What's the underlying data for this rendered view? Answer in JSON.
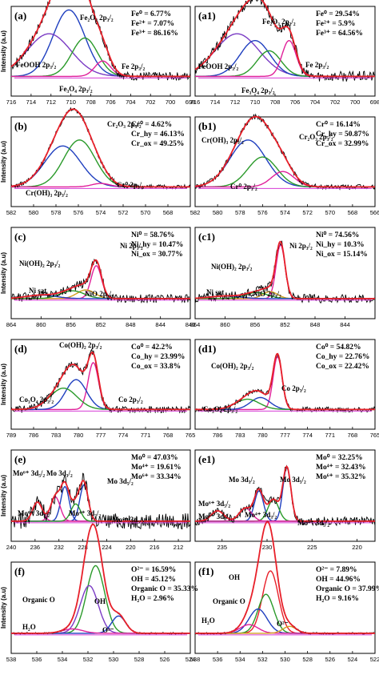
{
  "chart_data": [
    {
      "id": "a",
      "type": "line",
      "panel_label": "(a)",
      "ylabel": "Intensity (a.u)",
      "xlim": [
        716,
        698
      ],
      "xticks": [
        716,
        714,
        712,
        710,
        708,
        706,
        704,
        702,
        700,
        698
      ],
      "stats": [
        {
          "label": "Fe⁰",
          "value": "6.77%"
        },
        {
          "label": "Fe²⁺",
          "value": "7.07%"
        },
        {
          "label": "Fe³⁺",
          "value": "86.16%"
        }
      ],
      "annotations": [
        "Fe₂O₃ 2p₃/₂",
        "FeOOH 2p₃/₂",
        "Fe₃O₄ 2p₃/₂",
        "Fe 2p₃/₂"
      ],
      "components": [
        {
          "center": 710.2,
          "height": 0.78,
          "width": 1.6,
          "color": "#1f3fbf"
        },
        {
          "center": 712.2,
          "height": 0.5,
          "width": 2.2,
          "color": "#7a3bc4"
        },
        {
          "center": 708.6,
          "height": 0.45,
          "width": 1.3,
          "color": "#2a9a2a"
        },
        {
          "center": 706.8,
          "height": 0.18,
          "width": 0.8,
          "color": "#e0209a"
        }
      ],
      "noise": 0.05
    },
    {
      "id": "a1",
      "type": "line",
      "panel_label": "(a1)",
      "ylabel": "",
      "xlim": [
        716,
        698
      ],
      "xticks": [
        716,
        714,
        712,
        710,
        708,
        706,
        704,
        702,
        700,
        698
      ],
      "stats": [
        {
          "label": "Fe⁰",
          "value": "29.54%"
        },
        {
          "label": "Fe²⁺",
          "value": "5.9%"
        },
        {
          "label": "Fe³⁺",
          "value": "64.56%"
        }
      ],
      "annotations": [
        "Fe₂O₃ 2p₃/₂",
        "FeOOH 2p₃/₂",
        "Fe₃O₄ 2p₃/₂",
        "Fe 2p₃/₂"
      ],
      "components": [
        {
          "center": 711.8,
          "height": 0.5,
          "width": 2.2,
          "color": "#7a3bc4"
        },
        {
          "center": 710.0,
          "height": 0.42,
          "width": 1.5,
          "color": "#1f3fbf"
        },
        {
          "center": 708.6,
          "height": 0.3,
          "width": 1.2,
          "color": "#2a9a2a"
        },
        {
          "center": 706.6,
          "height": 0.42,
          "width": 0.7,
          "color": "#e0209a"
        }
      ],
      "noise": 0.06
    },
    {
      "id": "b",
      "type": "line",
      "panel_label": "(b)",
      "ylabel": "Intensity (a.u)",
      "xlim": [
        582,
        566
      ],
      "xticks": [
        582,
        580,
        578,
        576,
        574,
        572,
        570,
        568
      ],
      "stats": [
        {
          "label": "Cr⁰",
          "value": "4.62%"
        },
        {
          "label": "Cr_hy",
          "value": "46.13%"
        },
        {
          "label": "Cr_ox",
          "value": "49.25%"
        }
      ],
      "annotations": [
        "Cr₂O₃ 2p₃/₂",
        "Cr(OH)₃ 2p₃/₂",
        "Cr⁰ 2p₃/₂"
      ],
      "components": [
        {
          "center": 577.4,
          "height": 0.48,
          "width": 1.6,
          "color": "#1f3fbf"
        },
        {
          "center": 575.9,
          "height": 0.55,
          "width": 1.4,
          "color": "#2a9a2a"
        },
        {
          "center": 574.0,
          "height": 0.04,
          "width": 0.8,
          "color": "#e0209a"
        }
      ],
      "noise": 0.025
    },
    {
      "id": "b1",
      "type": "line",
      "panel_label": "(b1)",
      "ylabel": "",
      "xlim": [
        582,
        566
      ],
      "xticks": [
        582,
        580,
        578,
        576,
        574,
        572,
        570,
        568,
        566
      ],
      "stats": [
        {
          "label": "Cr⁰",
          "value": "16.14%"
        },
        {
          "label": "Cr_hy",
          "value": "50.87%"
        },
        {
          "label": "Cr_ox",
          "value": "32.99%"
        }
      ],
      "annotations": [
        "Cr(OH)₃ 2p₃/₂",
        "Cr₂O₃ 2p₃/₂",
        "Cr⁰ 2p₃/₂"
      ],
      "components": [
        {
          "center": 577.3,
          "height": 0.55,
          "width": 1.6,
          "color": "#1f3fbf"
        },
        {
          "center": 576.0,
          "height": 0.35,
          "width": 1.3,
          "color": "#2a9a2a"
        },
        {
          "center": 574.2,
          "height": 0.18,
          "width": 1.0,
          "color": "#e0209a"
        }
      ],
      "noise": 0.03
    },
    {
      "id": "c",
      "type": "line",
      "panel_label": "(c)",
      "ylabel": "Intensity (a.u)",
      "xlim": [
        864,
        840
      ],
      "xticks": [
        864,
        860,
        856,
        852,
        848,
        844,
        840
      ],
      "stats": [
        {
          "label": "Ni⁰",
          "value": "58.76%"
        },
        {
          "label": "Ni_hy",
          "value": "10.47%"
        },
        {
          "label": "Ni_ox",
          "value": "30.77%"
        }
      ],
      "annotations": [
        "Ni(OH)₂ 2p₃/₂",
        "Ni 2p₃/₂",
        "Ni sat",
        "NiO 2p₃/₂"
      ],
      "components": [
        {
          "center": 852.6,
          "height": 0.38,
          "width": 0.7,
          "color": "#e0209a"
        },
        {
          "center": 854.0,
          "height": 0.1,
          "width": 1.2,
          "color": "#d4a020"
        },
        {
          "center": 855.8,
          "height": 0.09,
          "width": 1.6,
          "color": "#2a9a2a"
        },
        {
          "center": 860.0,
          "height": 0.04,
          "width": 2.0,
          "color": "#1f3fbf"
        }
      ],
      "noise": 0.05
    },
    {
      "id": "c1",
      "type": "line",
      "panel_label": "(c1)",
      "ylabel": "",
      "xlim": [
        864,
        840
      ],
      "xticks": [
        864,
        860,
        856,
        852,
        848,
        844
      ],
      "stats": [
        {
          "label": "Ni⁰",
          "value": "74.56%"
        },
        {
          "label": "Ni_hy",
          "value": "10.3%"
        },
        {
          "label": "Ni_ox",
          "value": "15.14%"
        }
      ],
      "annotations": [
        "Ni(OH)₂ 2p₃/₂",
        "Ni 2p₃/₂",
        "Ni sat",
        "NiO 2p₃/₂"
      ],
      "components": [
        {
          "center": 852.6,
          "height": 0.62,
          "width": 0.6,
          "color": "#e0209a"
        },
        {
          "center": 854.0,
          "height": 0.08,
          "width": 1.0,
          "color": "#d4a020"
        },
        {
          "center": 855.8,
          "height": 0.07,
          "width": 1.5,
          "color": "#2a9a2a"
        },
        {
          "center": 860.0,
          "height": 0.03,
          "width": 2.0,
          "color": "#1f3fbf"
        }
      ],
      "noise": 0.05
    },
    {
      "id": "d",
      "type": "line",
      "panel_label": "(d)",
      "ylabel": "Intensity (a.u)",
      "xlim": [
        789,
        765
      ],
      "xticks": [
        789,
        786,
        783,
        780,
        777,
        774,
        771,
        768,
        765
      ],
      "stats": [
        {
          "label": "Co⁰",
          "value": "42.2%"
        },
        {
          "label": "Co_hy",
          "value": "23.99%"
        },
        {
          "label": "Co_ox",
          "value": "33.8%"
        }
      ],
      "annotations": [
        "Co(OH)₂ 2p₃/₂",
        "Co₃O₄ 2p₃/₂",
        "Co 2p₃/₂"
      ],
      "components": [
        {
          "center": 778.0,
          "height": 0.55,
          "width": 0.7,
          "color": "#e0209a"
        },
        {
          "center": 780.3,
          "height": 0.35,
          "width": 1.4,
          "color": "#1f3fbf"
        },
        {
          "center": 782.0,
          "height": 0.25,
          "width": 1.8,
          "color": "#2a9a2a"
        }
      ],
      "noise": 0.04
    },
    {
      "id": "d1",
      "type": "line",
      "panel_label": "(d1)",
      "ylabel": "",
      "xlim": [
        789,
        765
      ],
      "xticks": [
        786,
        783,
        780,
        777,
        774,
        771,
        768,
        765
      ],
      "stats": [
        {
          "label": "Co⁰",
          "value": "54.82%"
        },
        {
          "label": "Co_hy",
          "value": "22.76%"
        },
        {
          "label": "Co_ox",
          "value": "22.42%"
        }
      ],
      "annotations": [
        "Co(OH)₂ 2p₃/₂",
        "Co₃O₄ 2p₃/₂",
        "Co 2p₃/₂"
      ],
      "components": [
        {
          "center": 778.0,
          "height": 0.62,
          "width": 0.6,
          "color": "#e0209a"
        },
        {
          "center": 780.3,
          "height": 0.14,
          "width": 1.3,
          "color": "#1f3fbf"
        },
        {
          "center": 782.0,
          "height": 0.12,
          "width": 1.6,
          "color": "#2a9a2a"
        }
      ],
      "noise": 0.03
    },
    {
      "id": "e",
      "type": "line",
      "panel_label": "(e)",
      "ylabel": "Intensity (a.u)",
      "xlim": [
        240,
        210
      ],
      "xticks": [
        240,
        236,
        232,
        228,
        224,
        220,
        216,
        212
      ],
      "stats": [
        {
          "label": "Mo⁰",
          "value": "47.03%"
        },
        {
          "label": "Mo⁴⁺",
          "value": "19.61%"
        },
        {
          "label": "Mo⁶⁺",
          "value": "33.34%"
        }
      ],
      "annotations": [
        "Mo⁶⁺ 3d₅/₂",
        "Mo 3d₃/₂",
        "Mo 3d₅/₂",
        "Mo⁶⁺ 3d₃/₂",
        "Mo⁴⁺ 3d₃/₂",
        "Mo⁴⁺ 3d₅/₂"
      ],
      "components": [
        {
          "center": 227.8,
          "height": 0.42,
          "width": 0.7,
          "color": "#1f3fbf"
        },
        {
          "center": 231.0,
          "height": 0.4,
          "width": 0.7,
          "color": "#1f3fbf"
        },
        {
          "center": 232.6,
          "height": 0.28,
          "width": 0.8,
          "color": "#e0209a"
        },
        {
          "center": 235.6,
          "height": 0.22,
          "width": 0.8,
          "color": "#e0209a"
        },
        {
          "center": 229.2,
          "height": 0.2,
          "width": 0.8,
          "color": "#2a9a2a"
        }
      ],
      "noise": 0.09
    },
    {
      "id": "e1",
      "type": "line",
      "panel_label": "(e1)",
      "ylabel": "",
      "xlim": [
        238,
        218
      ],
      "xticks": [
        235,
        230,
        225,
        220
      ],
      "stats": [
        {
          "label": "Mo⁰",
          "value": "32.25%"
        },
        {
          "label": "Mo⁴⁺",
          "value": "32.43%"
        },
        {
          "label": "Mo⁶⁺",
          "value": "35.32%"
        }
      ],
      "annotations": [
        "Mo 3d₃/₂",
        "Mo 3d₅/₂",
        "Mo⁶⁺ 3d₅/₂",
        "Mo⁶⁺ 3d₃/₂",
        "Mo⁴⁺ 3d₃/₂",
        "Mo⁴⁺ 3d₅/₂"
      ],
      "components": [
        {
          "center": 227.8,
          "height": 0.62,
          "width": 0.45,
          "color": "#1f3fbf"
        },
        {
          "center": 230.9,
          "height": 0.35,
          "width": 0.5,
          "color": "#1f3fbf"
        },
        {
          "center": 229.3,
          "height": 0.25,
          "width": 0.6,
          "color": "#2a9a2a"
        },
        {
          "center": 232.4,
          "height": 0.15,
          "width": 0.7,
          "color": "#e0209a"
        },
        {
          "center": 235.5,
          "height": 0.12,
          "width": 0.7,
          "color": "#e0209a"
        }
      ],
      "noise": 0.05
    },
    {
      "id": "f",
      "type": "line",
      "panel_label": "(f)",
      "ylabel": "Intensity (a.u)",
      "xlim": [
        538,
        524
      ],
      "xticks": [
        538,
        536,
        534,
        532,
        530,
        528,
        526,
        524
      ],
      "stats": [
        {
          "label": "O²⁻",
          "value": "16.59%"
        },
        {
          "label": "OH",
          "value": "45.12%"
        },
        {
          "label": "Organic O",
          "value": "35.33%"
        },
        {
          "label": "H₂O",
          "value": "2.96%"
        }
      ],
      "annotations": [
        "Organic O",
        "OH",
        "H₂O",
        "O²⁻"
      ],
      "components": [
        {
          "center": 531.4,
          "height": 0.78,
          "width": 0.7,
          "color": "#2a9a2a"
        },
        {
          "center": 531.9,
          "height": 0.55,
          "width": 0.7,
          "color": "#7a3bc4"
        },
        {
          "center": 529.6,
          "height": 0.2,
          "width": 0.55,
          "color": "#1f3fbf"
        },
        {
          "center": 533.2,
          "height": 0.05,
          "width": 0.8,
          "color": "#e0209a"
        }
      ],
      "noise": 0.01
    },
    {
      "id": "f1",
      "type": "line",
      "panel_label": "(f1)",
      "ylabel": "",
      "xlim": [
        538,
        522
      ],
      "xticks": [
        538,
        536,
        534,
        532,
        530,
        528,
        526,
        524,
        522
      ],
      "stats": [
        {
          "label": "O²⁻",
          "value": "7.89%"
        },
        {
          "label": "OH",
          "value": "44.96%"
        },
        {
          "label": "Organic O",
          "value": "37.99%"
        },
        {
          "label": "H₂O",
          "value": "9.16%"
        }
      ],
      "annotations": [
        "OH",
        "Organic O",
        "H₂O",
        "O²⁻"
      ],
      "components": [
        {
          "center": 531.3,
          "height": 0.72,
          "width": 0.7,
          "color": "#e8202a"
        },
        {
          "center": 531.7,
          "height": 0.45,
          "width": 0.7,
          "color": "#2a9a2a"
        },
        {
          "center": 532.4,
          "height": 0.28,
          "width": 0.8,
          "color": "#1f3fbf"
        },
        {
          "center": 533.2,
          "height": 0.1,
          "width": 0.8,
          "color": "#e0209a"
        },
        {
          "center": 529.6,
          "height": 0.08,
          "width": 0.6,
          "color": "#d4a020"
        }
      ],
      "noise": 0.01
    }
  ]
}
